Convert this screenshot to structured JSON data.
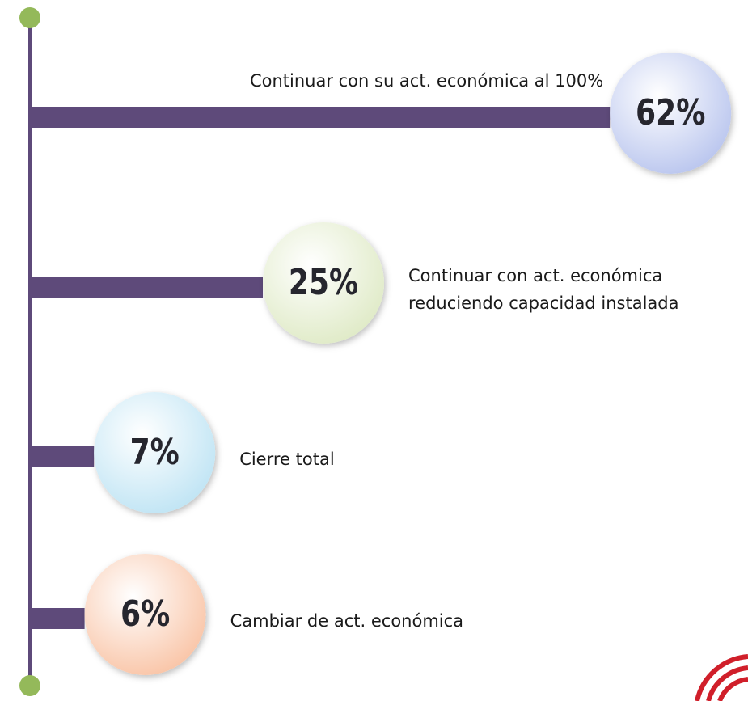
{
  "chart_data": {
    "type": "bar",
    "categories": [
      "Continuar con su act. económica al 100%",
      "Continuar con act. económica\nreduciendo capacidad instalada",
      "Cierre total",
      "Cambiar de act. económica"
    ],
    "values": [
      62,
      25,
      7,
      6
    ],
    "value_labels": [
      "62%",
      "25%",
      "7%",
      "6%"
    ],
    "color": "#5e4a7a",
    "colors": [
      "#b9c5ee",
      "#dfeac6",
      "#bfe4f4",
      "#f9c4a6"
    ]
  }
}
